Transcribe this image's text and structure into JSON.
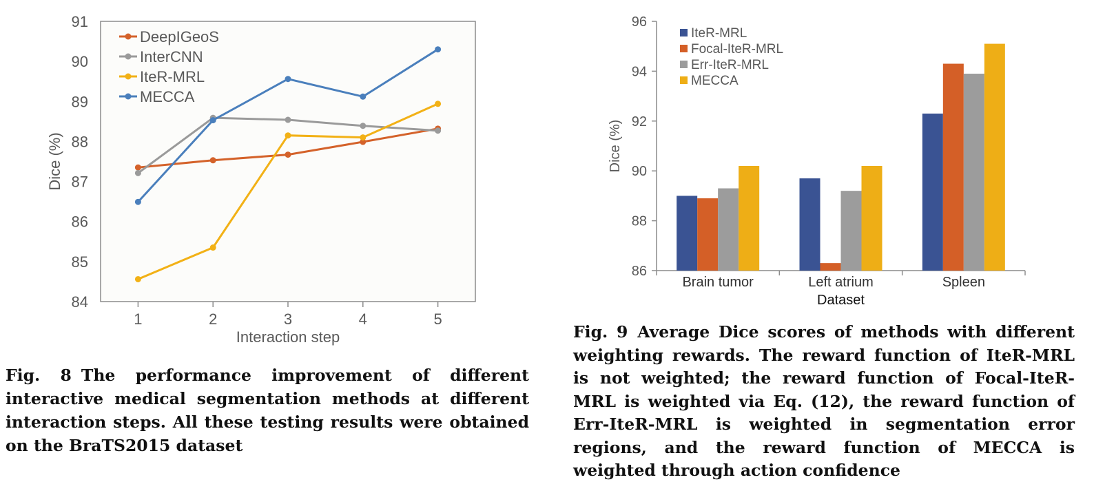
{
  "chart_data": [
    {
      "type": "line",
      "xlabel": "Interaction step",
      "ylabel": "Dice (%)",
      "x": [
        1,
        2,
        3,
        4,
        5
      ],
      "ylim": [
        84,
        91
      ],
      "yticks": [
        84,
        85,
        86,
        87,
        88,
        89,
        90,
        91
      ],
      "grid": false,
      "legend_position": "top-left",
      "series": [
        {
          "name": "DeepIGeoS",
          "color": "#d4622a",
          "values": [
            87.35,
            87.53,
            87.67,
            87.99,
            88.32
          ]
        },
        {
          "name": "InterCNN",
          "color": "#9a9a9a",
          "values": [
            87.21,
            88.59,
            88.54,
            88.39,
            88.27
          ]
        },
        {
          "name": "IteR-MRL",
          "color": "#f2b116",
          "values": [
            84.56,
            85.35,
            88.15,
            88.1,
            88.94
          ]
        },
        {
          "name": "MECCA",
          "color": "#4a7fbc",
          "values": [
            86.49,
            88.53,
            89.56,
            89.12,
            90.3
          ]
        }
      ]
    },
    {
      "type": "bar",
      "xlabel": "Dataset",
      "ylabel": "Dice (%)",
      "categories": [
        "Brain tumor",
        "Left atrium",
        "Spleen"
      ],
      "ylim": [
        86,
        96
      ],
      "yticks": [
        86,
        88,
        90,
        92,
        94,
        96
      ],
      "grid": false,
      "legend_position": "top-left",
      "series": [
        {
          "name": "IteR-MRL",
          "color": "#3a5393",
          "values": [
            89.0,
            89.7,
            92.3
          ]
        },
        {
          "name": "Focal-IteR-MRL",
          "color": "#d45f27",
          "values": [
            88.9,
            86.3,
            94.3
          ]
        },
        {
          "name": "Err-IteR-MRL",
          "color": "#9c9c9c",
          "values": [
            89.3,
            89.2,
            93.9
          ]
        },
        {
          "name": "MECCA",
          "color": "#eeae16",
          "values": [
            90.2,
            90.2,
            95.1
          ]
        }
      ]
    }
  ],
  "captions": {
    "fig8": {
      "label": "Fig. 8",
      "text": "The performance improvement of different interactive medical segmentation methods at different interaction steps. All these testing results were obtained on the BraTS2015 dataset"
    },
    "fig9": {
      "label": "Fig. 9",
      "text": "Average Dice scores of methods with different weighting rewards. The reward function of IteR-MRL is not weighted; the reward function of Focal-IteR-MRL is weighted via Eq. (12), the reward function of Err-IteR-MRL is weighted in segmentation error regions, and the reward function of MECCA is weighted through action confidence"
    }
  }
}
